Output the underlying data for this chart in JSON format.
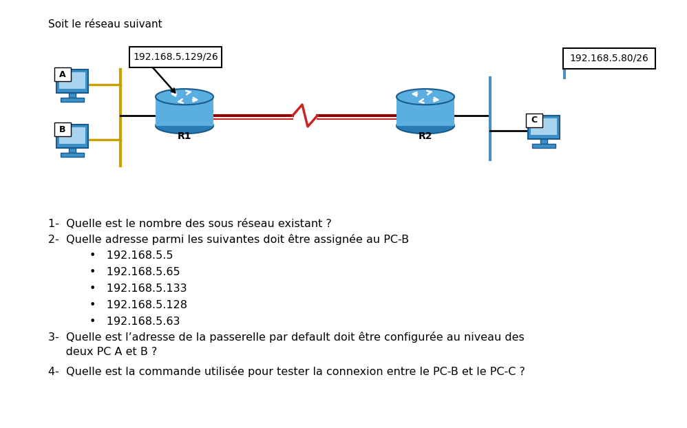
{
  "title": "Soit le réseau suivant",
  "ip_label_r1": "192.168.5.129/26",
  "ip_label_r2": "192.168.5.80/26",
  "q1": "1-  Quelle est le nombre des sous réseau existant ?",
  "q2_intro": "2-  Quelle adresse parmi les suivantes doit être assignée au PC-B",
  "q2_bullets": [
    "192.168.5.5",
    "192.168.5.65",
    "192.168.5.133",
    "192.168.5.128",
    "192.168.5.63"
  ],
  "q3_line1": "3-  Quelle est l’adresse de la passerelle par default doit être configurée au niveau des",
  "q3_line2": "     deux PC A et B ?",
  "q4": "4-  Quelle est la commande utilisée pour tester la connexion entre le PC-B et le PC-C ?",
  "bg_color": "#ffffff",
  "text_color": "#000000",
  "router_color_top": "#5baee0",
  "router_color_bot": "#2a7ab5",
  "router_edge": "#1a5a8a",
  "pc_color": "#3d8fc7",
  "pc_light": "#a8d4f0",
  "pc_dark": "#1a5a8a",
  "wan_dark": "#8B0000",
  "wan_thin": "#cc2222",
  "bus_color": "#c8a000",
  "line_black": "#000000"
}
